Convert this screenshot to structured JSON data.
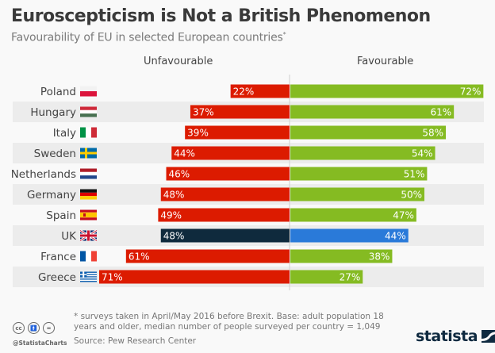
{
  "chart_data": {
    "type": "bar",
    "orientation": "horizontal-diverging",
    "title": "Euroscepticism is Not a British Phenomenon",
    "subtitle": "Favourability of EU in selected European countries",
    "subtitle_marker": "*",
    "categories": [
      "Poland",
      "Hungary",
      "Italy",
      "Sweden",
      "Netherlands",
      "Germany",
      "Spain",
      "UK",
      "France",
      "Greece"
    ],
    "series": [
      {
        "name": "Unfavourable",
        "values": [
          22,
          37,
          39,
          44,
          46,
          48,
          49,
          48,
          61,
          71
        ],
        "color": "#dc1b00",
        "highlight_color": "#0f2a3d"
      },
      {
        "name": "Favourable",
        "values": [
          72,
          61,
          58,
          54,
          51,
          50,
          47,
          44,
          38,
          27
        ],
        "color": "#85bb22",
        "highlight_color": "#2a7ad9"
      }
    ],
    "highlight_category": "UK",
    "value_suffix": "%",
    "xlim": [
      0,
      100
    ]
  },
  "flags": [
    "poland",
    "hungary",
    "italy",
    "sweden",
    "netherlands",
    "germany",
    "spain",
    "uk",
    "france",
    "greece"
  ],
  "footer": {
    "footnote": "* surveys taken in April/May 2016 before Brexit. Base: adult population 18 years and older, median number of people surveyed per country = 1,049",
    "source": "Source: Pew Research Center",
    "handle": "@StatistaCharts",
    "cc_icons": [
      "cc",
      "by",
      "nd"
    ],
    "logo": "statista"
  }
}
